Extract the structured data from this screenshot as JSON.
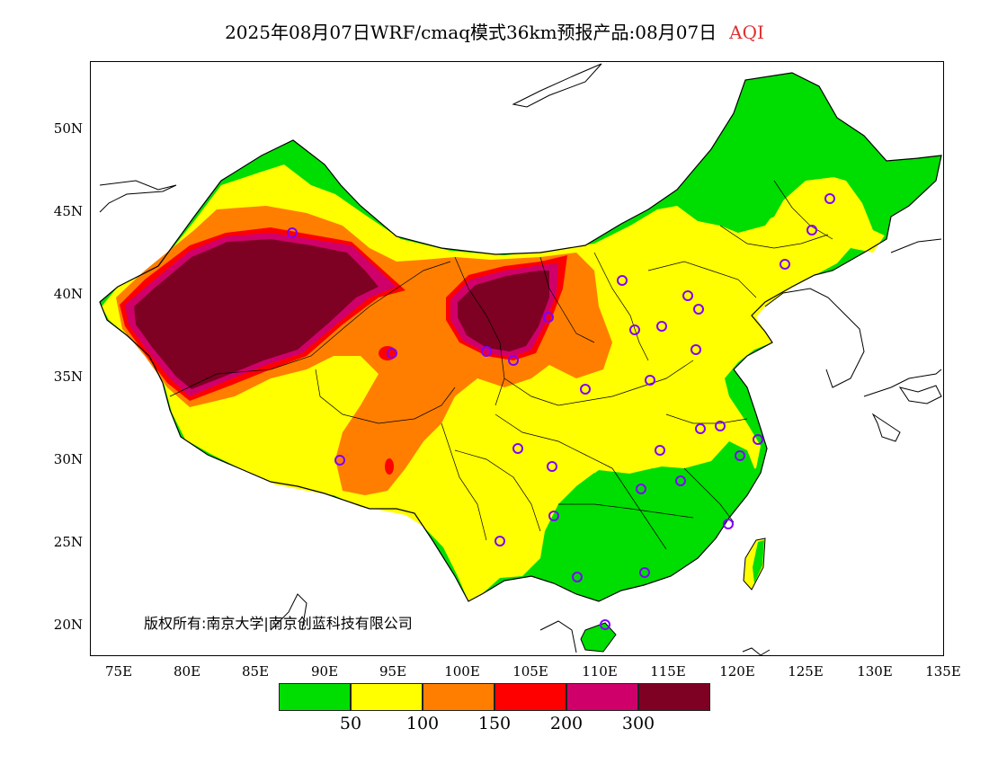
{
  "title": {
    "main": "2025年08月07日WRF/cmaq模式36km预报产品:08月07日",
    "variable": "AQI"
  },
  "copyright": "版权所有:南京大学|南京创蓝科技有限公司",
  "lat_labels": [
    "50N",
    "45N",
    "40N",
    "35N",
    "30N",
    "25N",
    "20N"
  ],
  "lon_labels": [
    "75E",
    "80E",
    "85E",
    "90E",
    "95E",
    "100E",
    "105E",
    "110E",
    "115E",
    "120E",
    "125E",
    "130E",
    "135E"
  ],
  "legend": {
    "colors": [
      "#00dd00",
      "#ffff00",
      "#ff7e00",
      "#ff0000",
      "#d0006a",
      "#7e0023"
    ],
    "labels": [
      "50",
      "100",
      "150",
      "200",
      "300"
    ]
  },
  "colors": {
    "good": "#00dd00",
    "moderate": "#ffff00",
    "sensitive": "#ff7e00",
    "unhealthy": "#ff0000",
    "very_unhealthy": "#d0006a",
    "hazardous": "#7e0023",
    "station_marker": "#8000ff",
    "title_variable": "#e03030"
  }
}
